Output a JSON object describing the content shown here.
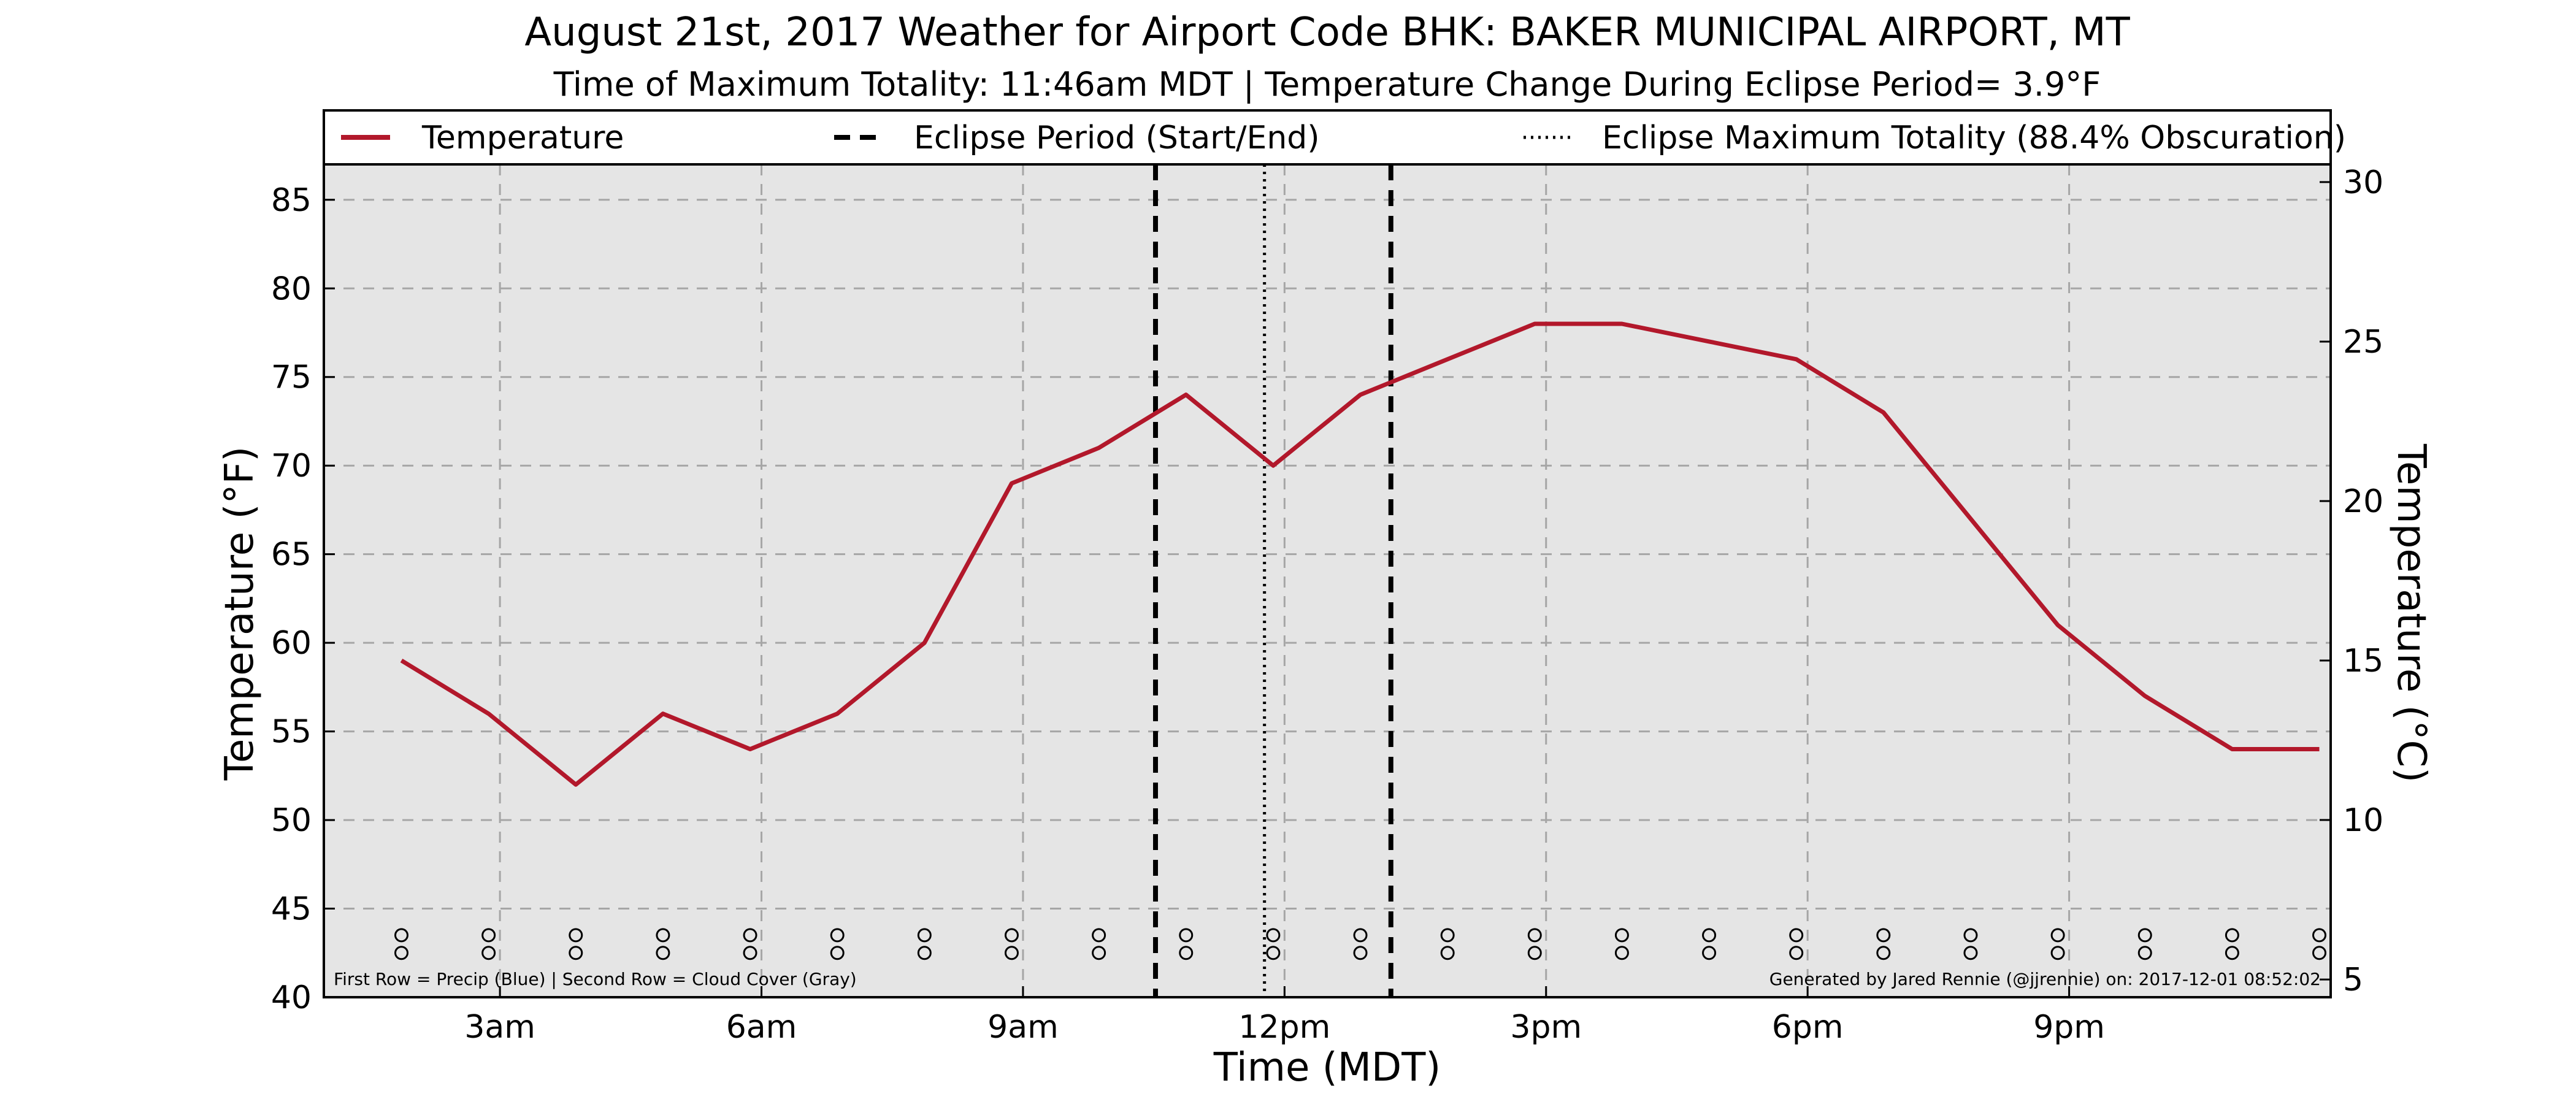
{
  "chart_data": {
    "type": "line",
    "title": "August 21st, 2017 Weather for Airport Code BHK: BAKER MUNICIPAL AIRPORT, MT",
    "subtitle": "Time of Maximum Totality: 11:46am MDT | Temperature Change During Eclipse Period= 3.9$^\\circ$F",
    "subtitle_display": "Time of Maximum Totality: 11:46am MDT | Temperature Change During Eclipse Period= 3.9°F",
    "xlabel": "Time (MDT)",
    "ylabel": "Temperature ($^\\circ$F)",
    "ylabel_display": "Temperature (°F)",
    "ylabel_right": "Temperature (°C)",
    "xlim": [
      0.98,
      24.0
    ],
    "ylim": [
      40,
      87
    ],
    "ylim_right_celsius": [
      4.444,
      30.556
    ],
    "x_ticks": [
      {
        "value": 3,
        "label": "3am"
      },
      {
        "value": 6,
        "label": "6am"
      },
      {
        "value": 9,
        "label": "9am"
      },
      {
        "value": 12,
        "label": "12pm"
      },
      {
        "value": 15,
        "label": "3pm"
      },
      {
        "value": 18,
        "label": "6pm"
      },
      {
        "value": 21,
        "label": "9pm"
      }
    ],
    "y_ticks": [
      40,
      45,
      50,
      55,
      60,
      65,
      70,
      75,
      80,
      85
    ],
    "y_ticks_right": [
      5,
      10,
      15,
      20,
      25,
      30
    ],
    "grid": true,
    "legend_position": "top",
    "legend": [
      {
        "label": "Temperature",
        "style": "solid",
        "color": "#b2182b"
      },
      {
        "label": "Eclipse Period (Start/End)",
        "style": "dashed",
        "color": "#000000"
      },
      {
        "label": "Eclipse Maximum Totality (88.4% Obscuration)",
        "style": "dotted",
        "color": "#000000"
      }
    ],
    "series": [
      {
        "name": "Temperature",
        "color": "#b2182b",
        "x": [
          1.87,
          2.87,
          3.87,
          4.87,
          5.87,
          6.87,
          7.87,
          8.87,
          9.87,
          10.87,
          11.87,
          12.87,
          13.87,
          14.87,
          15.87,
          16.87,
          17.87,
          18.87,
          19.87,
          20.87,
          21.87,
          22.87,
          23.87
        ],
        "values": [
          59,
          56,
          52,
          56,
          54,
          56,
          60,
          69,
          71,
          74,
          70,
          74,
          76,
          78,
          78,
          77,
          76,
          73,
          67,
          61,
          57,
          54,
          54
        ]
      }
    ],
    "eclipse_period": {
      "start": 10.52,
      "end": 13.22,
      "label": "Eclipse Period (Start/End)"
    },
    "eclipse_max": {
      "x": 11.77,
      "label": "Eclipse Maximum Totality (88.4% Obscuration)"
    },
    "markers": {
      "x": [
        1.87,
        2.87,
        3.87,
        4.87,
        5.87,
        6.87,
        7.87,
        8.87,
        9.87,
        10.87,
        11.87,
        12.87,
        13.87,
        14.87,
        15.87,
        16.87,
        17.87,
        18.87,
        19.87,
        20.87,
        21.87,
        22.87,
        23.87
      ],
      "row1_value": 43.5,
      "row2_value": 42.5,
      "row1_symbol": "o",
      "row2_symbol": "o"
    },
    "footnote_left": "First Row = Precip (Blue) | Second Row = Cloud Cover (Gray)",
    "footnote_right": "Generated by Jared Rennie (@jjrennie) on: 2017-12-01 08:52:02"
  },
  "colors": {
    "plot_background": "#e5e5e5",
    "temperature_line": "#b2182b",
    "grid": "#a6a6a6",
    "eclipse_lines": "#000000"
  }
}
